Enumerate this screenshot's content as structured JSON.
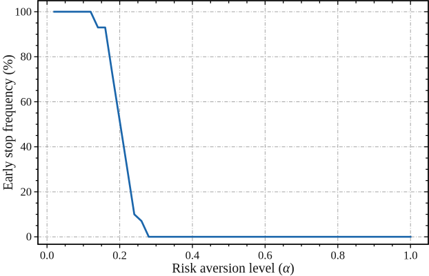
{
  "figure": {
    "background": "#ffffff",
    "description": "Line chart of early stopping frequency versus risk aversion level"
  },
  "chart_data": {
    "type": "line",
    "title": "",
    "xlabel": "Risk aversion level (α)",
    "ylabel": "Early stop frequency (%)",
    "x": [
      0.02,
      0.04,
      0.06,
      0.08,
      0.1,
      0.12,
      0.14,
      0.16,
      0.18,
      0.2,
      0.22,
      0.24,
      0.26,
      0.28,
      0.3,
      0.32,
      0.34,
      0.36,
      0.38,
      0.4,
      0.42,
      0.44,
      0.46,
      0.48,
      0.5,
      0.52,
      0.54,
      0.56,
      0.58,
      0.6,
      0.62,
      0.64,
      0.66,
      0.68,
      0.7,
      0.72,
      0.74,
      0.76,
      0.78,
      0.8,
      0.82,
      0.84,
      0.86,
      0.88,
      0.9,
      0.92,
      0.94,
      0.96,
      0.98,
      1.0
    ],
    "y": [
      100,
      100,
      100,
      100,
      100,
      100,
      93,
      93,
      72,
      51.5,
      31,
      10,
      7,
      0,
      0,
      0,
      0,
      0,
      0,
      0,
      0,
      0,
      0,
      0,
      0,
      0,
      0,
      0,
      0,
      0,
      0,
      0,
      0,
      0,
      0,
      0,
      0,
      0,
      0,
      0,
      0,
      0,
      0,
      0,
      0,
      0,
      0,
      0,
      0,
      0
    ],
    "xticks": [
      0.0,
      0.2,
      0.4,
      0.6,
      0.8,
      1.0
    ],
    "xtick_labels": [
      "0.0",
      "0.2",
      "0.4",
      "0.6",
      "0.8",
      "1.0"
    ],
    "yticks": [
      0,
      20,
      40,
      60,
      80,
      100
    ],
    "ytick_labels": [
      "0",
      "20",
      "40",
      "60",
      "80",
      "100"
    ],
    "x_minor_step": 0.05,
    "y_minor_step": 5,
    "xlim": [
      -0.025,
      1.049
    ],
    "ylim": [
      -3.3,
      104.9
    ],
    "grid": true,
    "legend": null,
    "line_color": "#1b66ab",
    "grid_color": "#a3a3a3",
    "axis_color": "#000000",
    "text_color": "#111111"
  }
}
